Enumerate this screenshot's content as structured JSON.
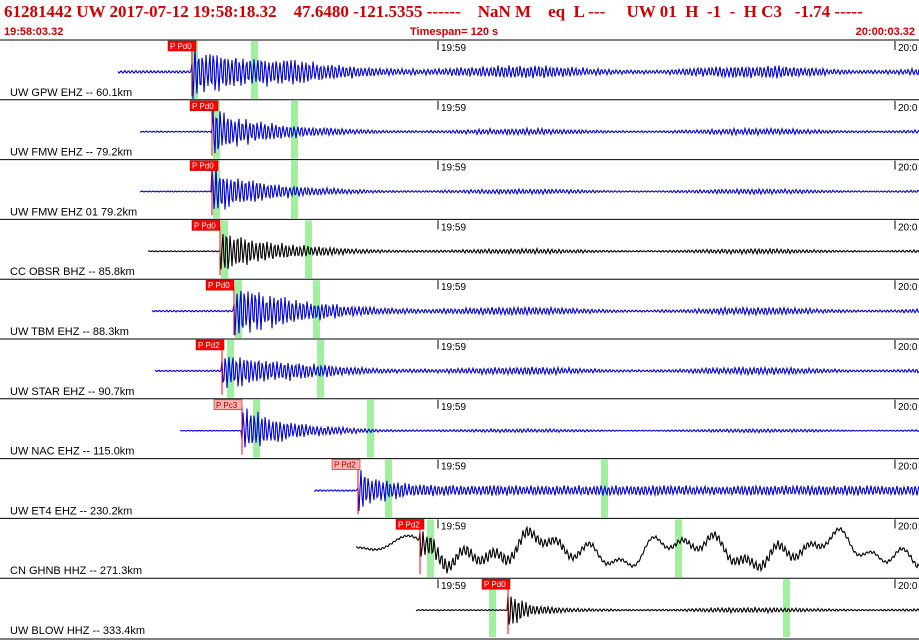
{
  "header": {
    "title": "61281442 UW 2017-07-12 19:58:18.32    47.6480 -121.5355 ------    NaN M    eq  L ---     UW 01  H  -1  -  H C3   -1.74 -----",
    "start_time": "19:58:03.32",
    "timespan": "Timespan= 120 s",
    "end_time": "20:00:03.32"
  },
  "colors": {
    "blue": "#0000e0",
    "black": "#000000",
    "pick": "#ff0000",
    "pick_light": "#ffb0b0",
    "green": "#a0f0a0",
    "header_red": "#d00000"
  },
  "minute_labels": [
    "19:59",
    "20:0"
  ],
  "traces": [
    {
      "label": "UW GPW EHZ -- 60.1km",
      "pick": "P Pd0",
      "color": "blue"
    },
    {
      "label": "UW FMW EHZ -- 79.2km",
      "pick": "P Pd0",
      "color": "blue"
    },
    {
      "label": "UW FMW EHZ 01 79.2km",
      "pick": "P Pd0",
      "color": "blue"
    },
    {
      "label": "CC OBSR BHZ -- 85.8km",
      "pick": "P Pd0",
      "color": "black"
    },
    {
      "label": "UW TBM EHZ -- 88.3km",
      "pick": "P Pd0",
      "color": "blue"
    },
    {
      "label": "UW STAR EHZ -- 90.7km",
      "pick": "P Pd2",
      "color": "blue"
    },
    {
      "label": "UW NAC EHZ -- 115.0km",
      "pick": "P Pc3",
      "color": "blue"
    },
    {
      "label": "UW ET4 EHZ -- 230.2km",
      "pick": "P Pd2",
      "color": "blue"
    },
    {
      "label": "CN GHNB HHZ -- 271.3km",
      "pick": "P Pd2",
      "color": "black"
    },
    {
      "label": "UW BLOW HHZ -- 333.4km",
      "pick": "P Pd0",
      "color": "black"
    }
  ]
}
